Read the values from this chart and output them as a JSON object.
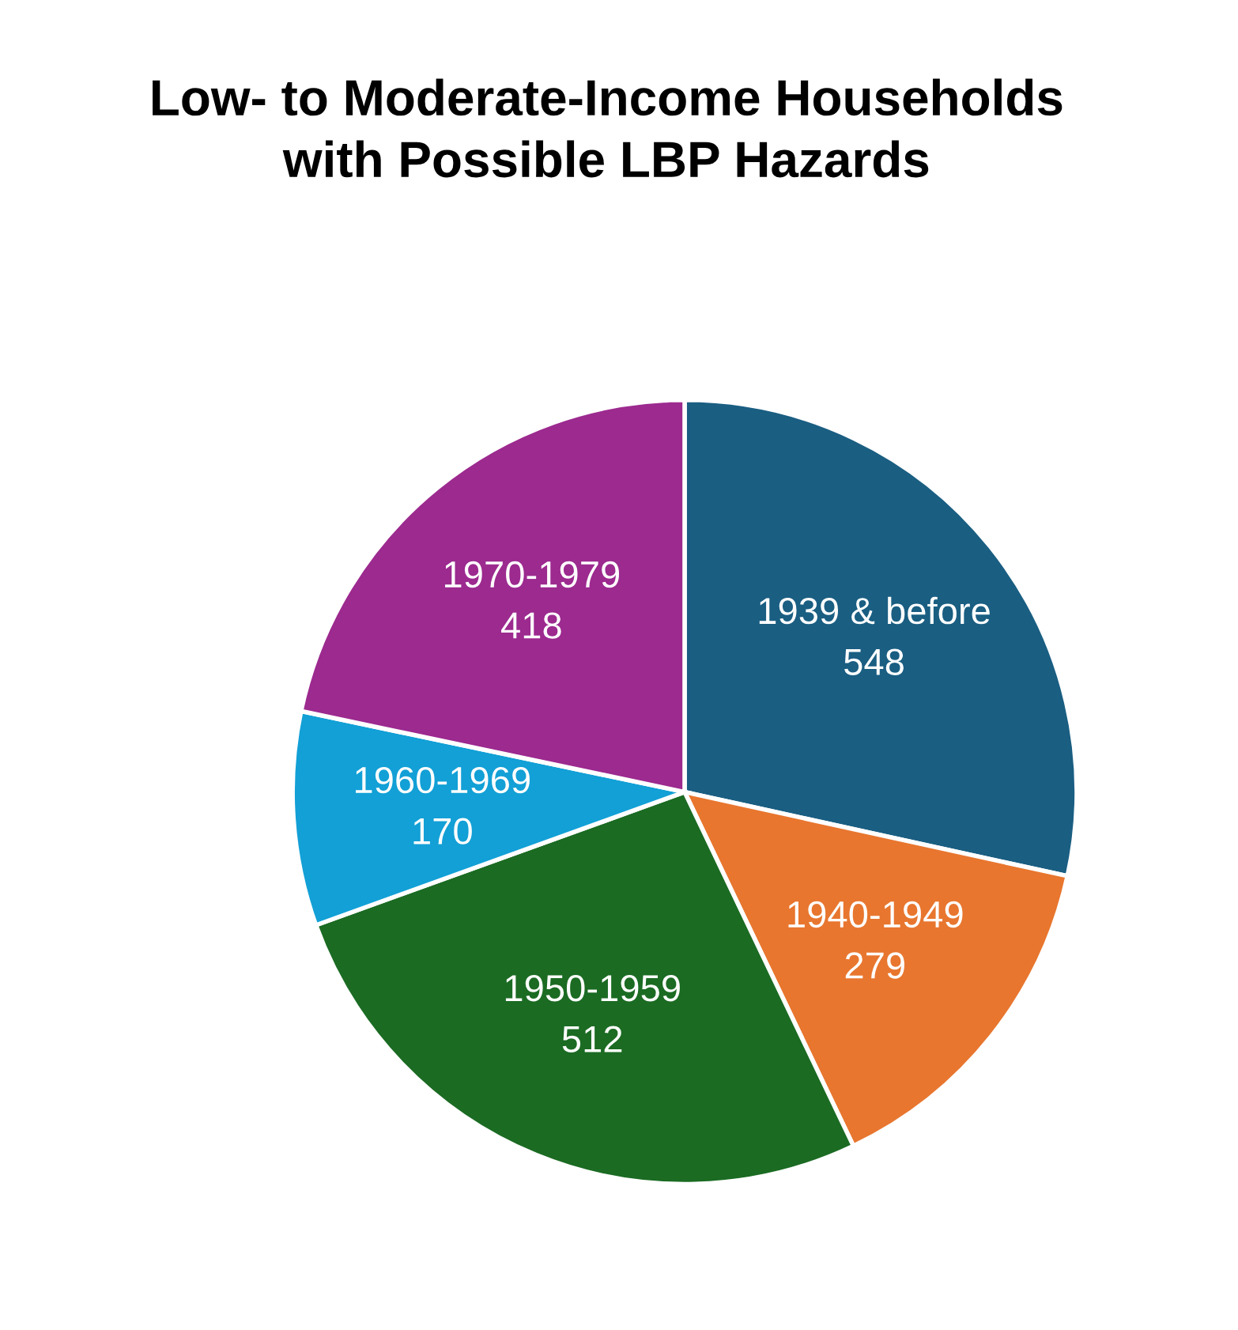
{
  "chart_data": {
    "type": "pie",
    "title": "Low- to Moderate-Income Households\nwith Possible LBP Hazards",
    "categories": [
      "1939 & before",
      "1940-1949",
      "1950-1959",
      "1960-1969",
      "1970-1979"
    ],
    "values": [
      548,
      279,
      512,
      170,
      418
    ],
    "colors": [
      "#1a5e82",
      "#e8762f",
      "#1b6b23",
      "#12a0d6",
      "#9c2a8f"
    ],
    "data_labels": true,
    "legend": false
  }
}
